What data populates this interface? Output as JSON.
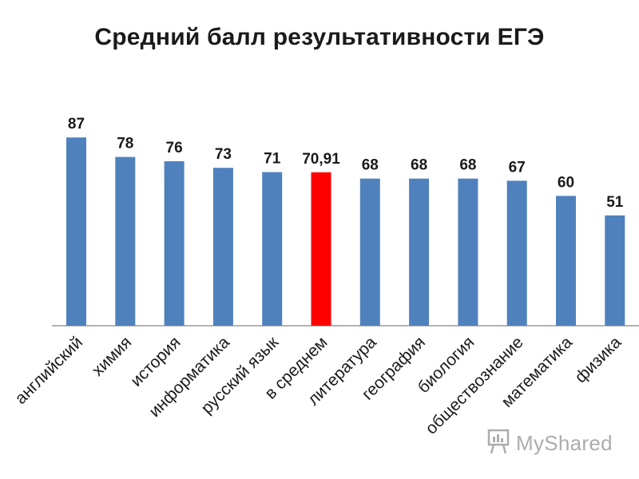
{
  "chart_data": {
    "type": "bar",
    "title": "Средний балл результативности ЕГЭ",
    "categories": [
      "английский",
      "химия",
      "история",
      "информатика",
      "русский язык",
      "в среднем",
      "литература",
      "география",
      "биология",
      "обществознание",
      "математика",
      "физика"
    ],
    "values": [
      87,
      78,
      76,
      73,
      71,
      70.91,
      68,
      68,
      68,
      67,
      60,
      51
    ],
    "value_labels": [
      "87",
      "78",
      "76",
      "73",
      "71",
      "70,91",
      "68",
      "68",
      "68",
      "67",
      "60",
      "51"
    ],
    "xlabel": "",
    "ylabel": "",
    "ylim": [
      0,
      100
    ],
    "grid": false,
    "legend": "none",
    "colors": {
      "default": "#4f81bd",
      "highlight": "#ff0000",
      "highlight_category": "в среднем"
    }
  },
  "watermark": {
    "text": "MyShared",
    "icon": "presentation-board-icon"
  }
}
